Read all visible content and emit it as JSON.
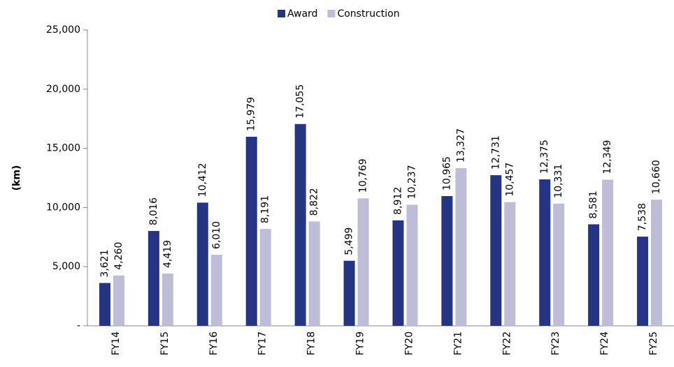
{
  "chart_data": {
    "type": "bar",
    "y_label": "(km)",
    "categories": [
      "FY14",
      "FY15",
      "FY16",
      "FY17",
      "FY18",
      "FY19",
      "FY20",
      "FY21",
      "FY22",
      "FY23",
      "FY24",
      "FY25"
    ],
    "series": [
      {
        "name": "Award",
        "color": "#253583",
        "values": [
          3621,
          8016,
          10412,
          15979,
          17055,
          5499,
          8912,
          10965,
          12731,
          12375,
          8581,
          7538
        ],
        "value_labels": [
          "3,621",
          "8,016",
          "10,412",
          "15,979",
          "17,055",
          "5,499",
          "8,912",
          "10,965",
          "12,731",
          "12,375",
          "8,581",
          "7,538"
        ]
      },
      {
        "name": "Construction",
        "color": "#bdbdd7",
        "values": [
          4260,
          4419,
          6010,
          8191,
          8822,
          10769,
          10237,
          13327,
          10457,
          10331,
          12349,
          10660
        ],
        "value_labels": [
          "4,260",
          "4,419",
          "6,010",
          "8,191",
          "8,822",
          "10,769",
          "10,237",
          "13,327",
          "10,457",
          "10,331",
          "12,349",
          "10,660"
        ]
      }
    ],
    "ylim": [
      0,
      25000
    ],
    "yticks": [
      {
        "value": 0,
        "label": "-"
      },
      {
        "value": 5000,
        "label": "5,000"
      },
      {
        "value": 10000,
        "label": "10,000"
      },
      {
        "value": 15000,
        "label": "15,000"
      },
      {
        "value": 20000,
        "label": "20,000"
      },
      {
        "value": 25000,
        "label": "25,000"
      }
    ],
    "legend": "top"
  }
}
